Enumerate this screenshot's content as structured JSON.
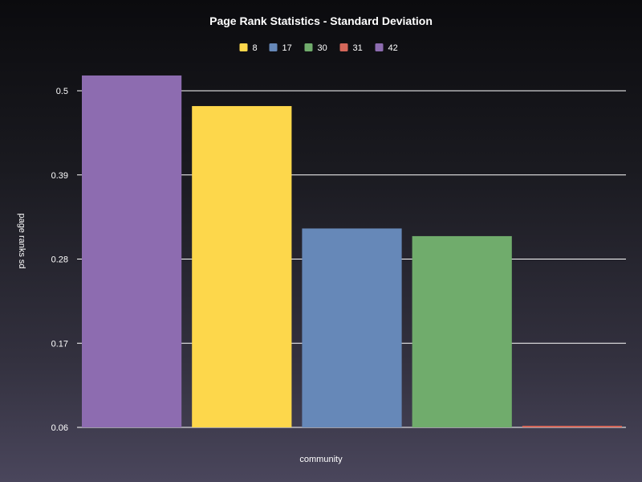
{
  "chart_data": {
    "type": "bar",
    "title": "Page Rank Statistics - Standard Deviation",
    "xlabel": "community",
    "ylabel": "page ranks sd",
    "ylim": [
      0.06,
      0.5
    ],
    "yticks": [
      "0.06",
      "0.17",
      "0.28",
      "0.39",
      "0.5"
    ],
    "grid": true,
    "legend_position": "top",
    "legend": [
      {
        "name": "8",
        "color": "#fdd74b"
      },
      {
        "name": "17",
        "color": "#6688b8"
      },
      {
        "name": "30",
        "color": "#70ac6c"
      },
      {
        "name": "31",
        "color": "#d4675a"
      },
      {
        "name": "42",
        "color": "#8d6cb0"
      }
    ],
    "bars": [
      {
        "series": "42",
        "value": 0.52,
        "color": "#8d6cb0"
      },
      {
        "series": "8",
        "value": 0.48,
        "color": "#fdd74b"
      },
      {
        "series": "17",
        "value": 0.32,
        "color": "#6688b8"
      },
      {
        "series": "30",
        "value": 0.31,
        "color": "#70ac6c"
      },
      {
        "series": "31",
        "value": 0.062,
        "color": "#d4675a"
      }
    ]
  }
}
